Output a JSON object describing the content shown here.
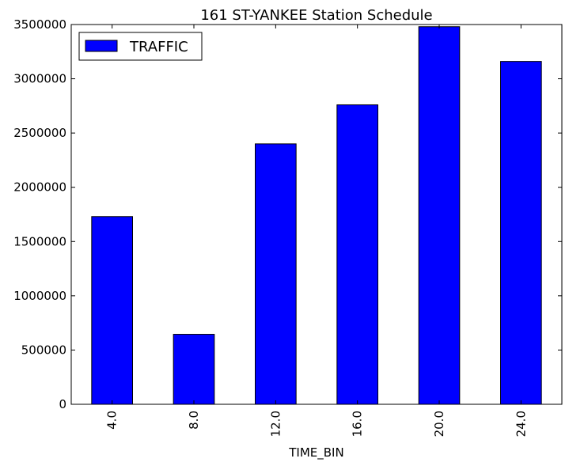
{
  "chart_data": {
    "type": "bar",
    "title": "161 ST-YANKEE Station Schedule",
    "xlabel": "TIME_BIN",
    "ylabel": "",
    "categories": [
      "4.0",
      "8.0",
      "12.0",
      "16.0",
      "20.0",
      "24.0"
    ],
    "series": [
      {
        "name": "TRAFFIC",
        "values": [
          1730000,
          645000,
          2400000,
          2760000,
          3480000,
          3160000
        ],
        "color": "#0000ff"
      }
    ],
    "ylim": [
      0,
      3500000
    ],
    "yticks": [
      0,
      500000,
      1000000,
      1500000,
      2000000,
      2500000,
      3000000,
      3500000
    ],
    "ytick_labels": [
      "0",
      "500000",
      "1000000",
      "1500000",
      "2000000",
      "2500000",
      "3000000",
      "3500000"
    ],
    "grid": false,
    "legend_position": "top-left"
  }
}
